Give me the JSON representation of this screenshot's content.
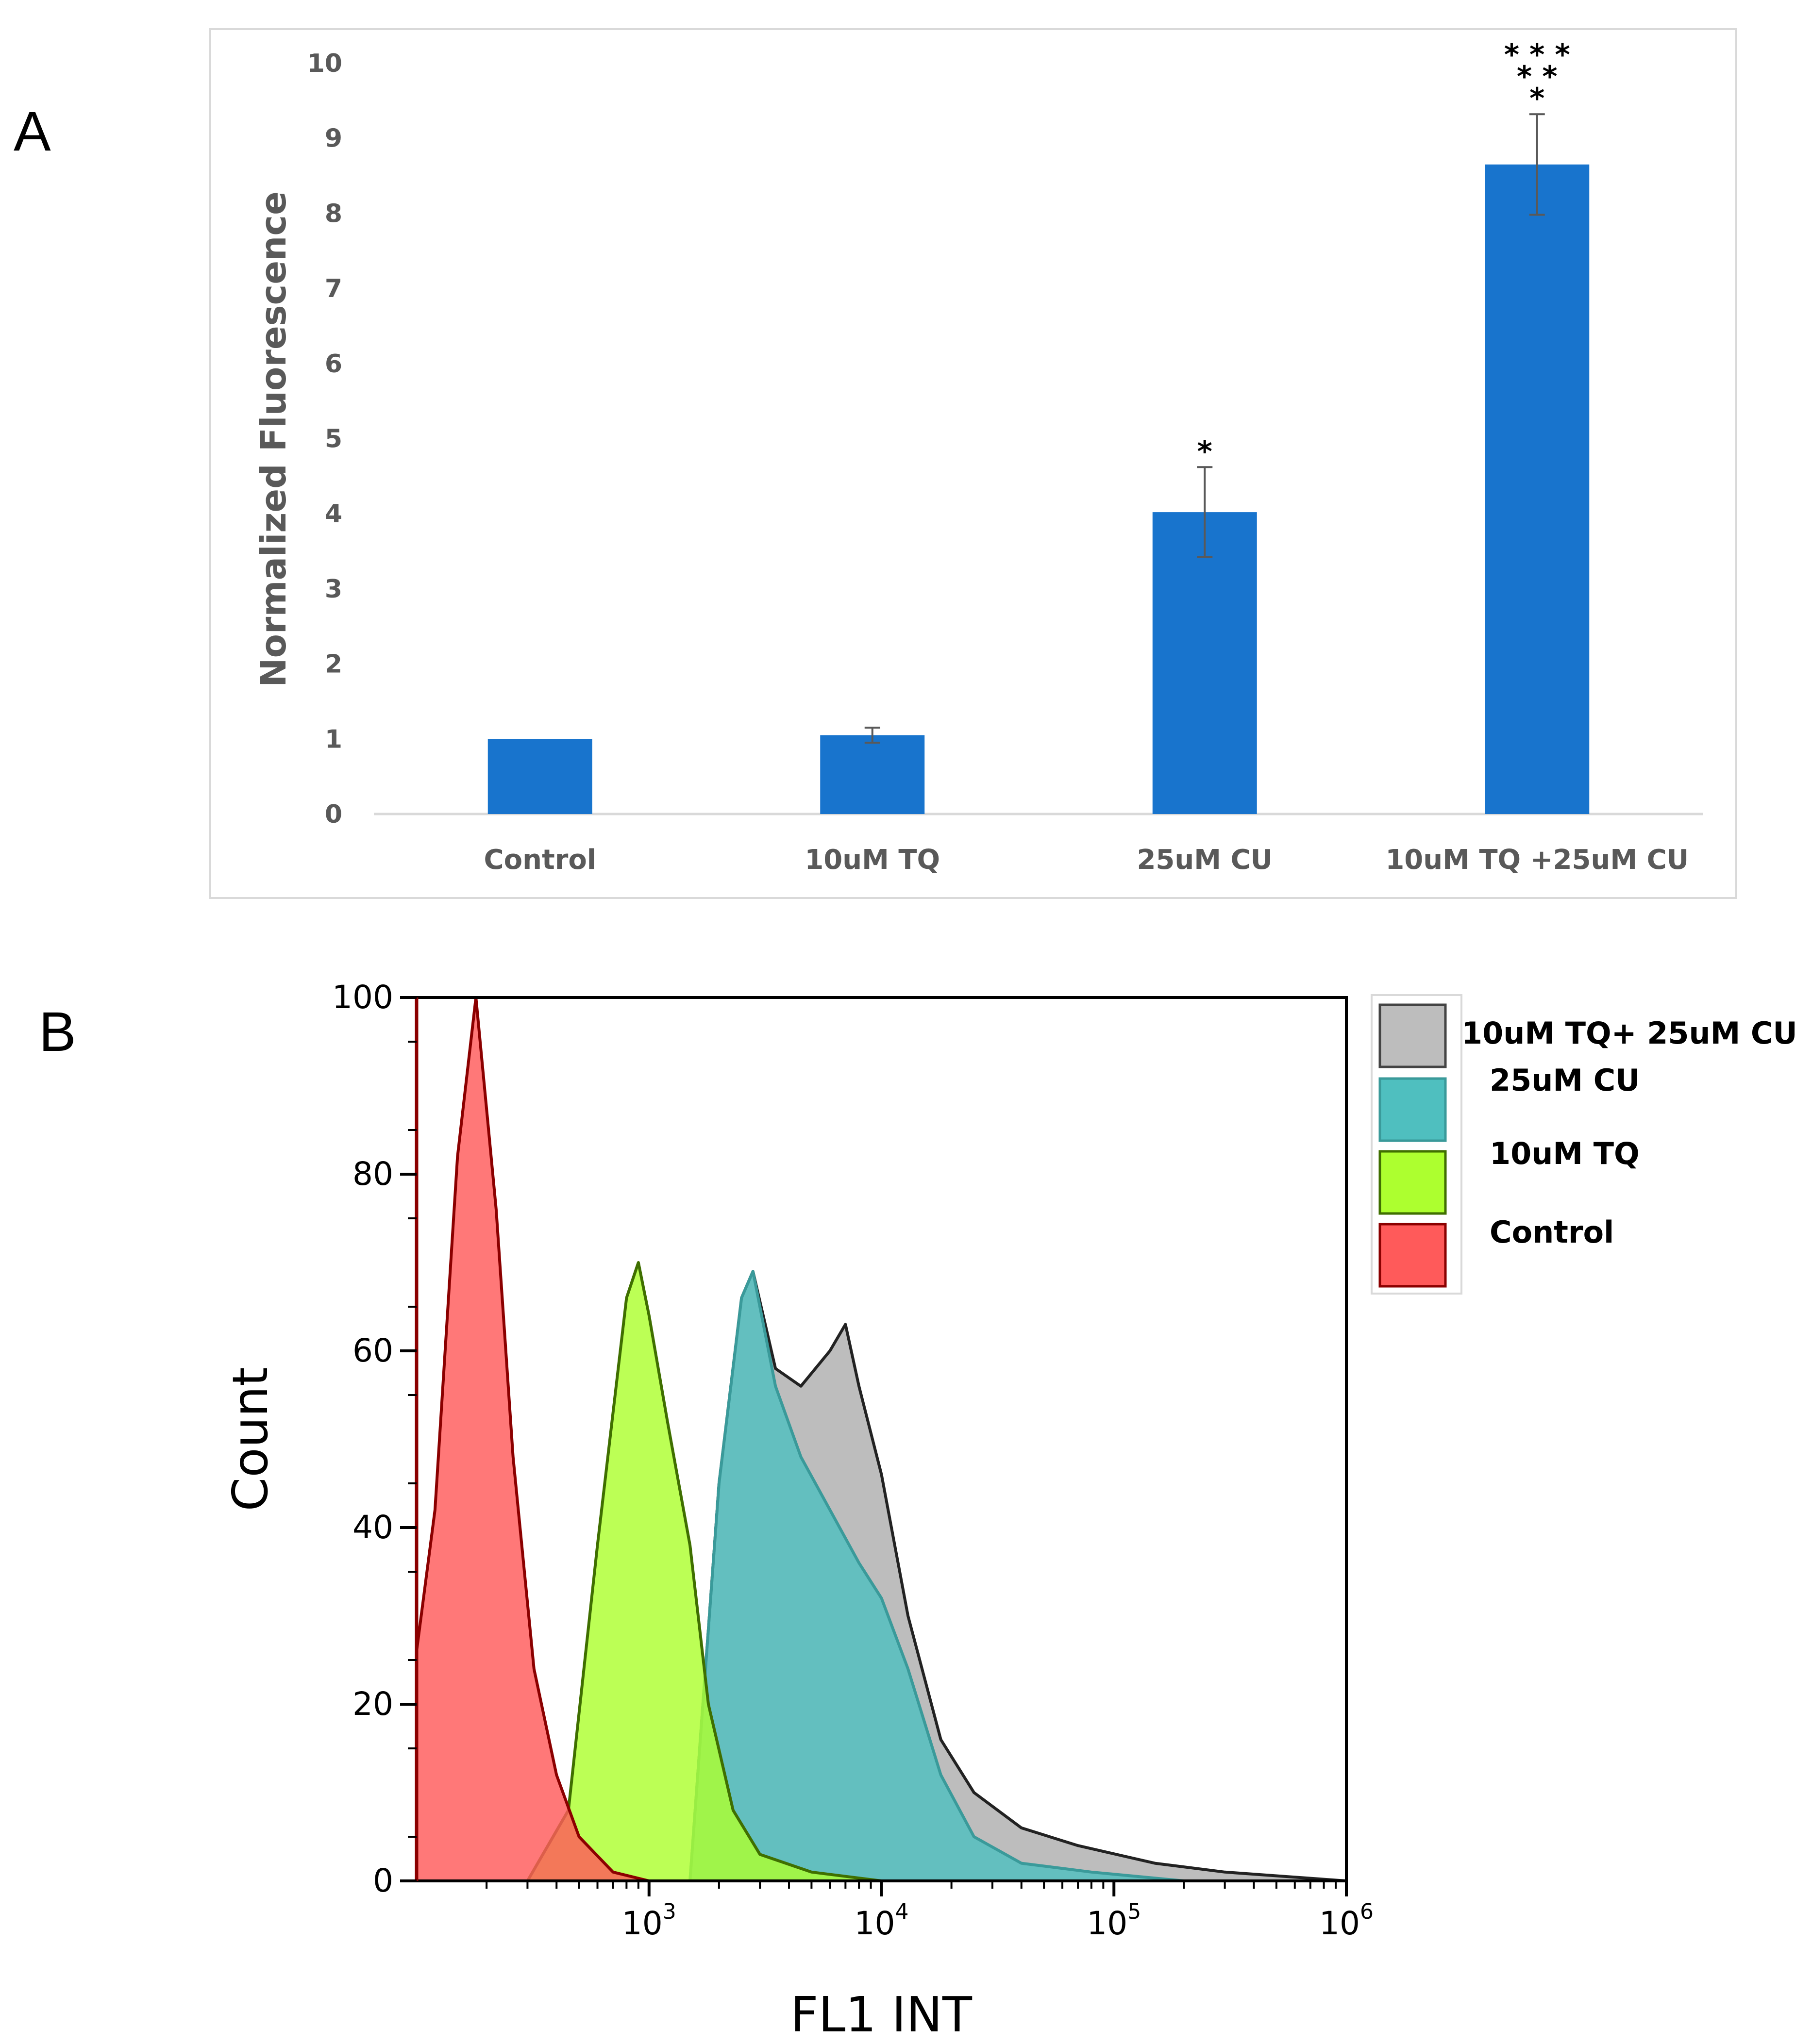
{
  "panels": {
    "a_label": "A",
    "b_label": "B"
  },
  "chart_data": [
    {
      "type": "bar",
      "title": "",
      "xlabel": "",
      "ylabel": "Normalized Fluorescence",
      "ylim": [
        0,
        10
      ],
      "yticks": [
        "0",
        "1",
        "2",
        "3",
        "4",
        "5",
        "6",
        "7",
        "8",
        "9",
        "10"
      ],
      "categories": [
        "Control",
        "10uM TQ",
        "25uM CU",
        "10uM TQ +25uM CU"
      ],
      "values": [
        1.0,
        1.05,
        4.02,
        8.65
      ],
      "errors": [
        0,
        0.1,
        0.6,
        0.67
      ],
      "annotations": [
        {
          "category": "25uM CU",
          "lines": [
            "*"
          ]
        },
        {
          "category": "10uM TQ +25uM CU",
          "lines": [
            "* * *",
            "* *",
            "*"
          ]
        }
      ],
      "bar_color": "#1874CD",
      "grid": false
    },
    {
      "type": "area",
      "title": "",
      "xlabel": "FL1 INT",
      "ylabel": "Count",
      "xscale": "log",
      "xlim": [
        100,
        1000000
      ],
      "ylim": [
        0,
        100
      ],
      "yticks": [
        "0",
        "20",
        "40",
        "60",
        "80",
        "100"
      ],
      "xticks": [
        {
          "base": "10",
          "exp": "3",
          "value": 1000
        },
        {
          "base": "10",
          "exp": "4",
          "value": 10000
        },
        {
          "base": "10",
          "exp": "5",
          "value": 100000
        },
        {
          "base": "10",
          "exp": "6",
          "value": 1000000
        }
      ],
      "series": [
        {
          "name": "10uM TQ+ 25uM CU",
          "color": "#BDBDBD",
          "peak_x": 2700,
          "points": [
            [
              1500,
              0
            ],
            [
              2000,
              45
            ],
            [
              2500,
              66
            ],
            [
              2800,
              69
            ],
            [
              3500,
              58
            ],
            [
              4500,
              56
            ],
            [
              6000,
              60
            ],
            [
              7000,
              63
            ],
            [
              8000,
              56
            ],
            [
              10000,
              46
            ],
            [
              13000,
              30
            ],
            [
              18000,
              16
            ],
            [
              25000,
              10
            ],
            [
              40000,
              6
            ],
            [
              70000,
              4
            ],
            [
              150000,
              2
            ],
            [
              300000,
              1
            ],
            [
              1000000,
              0
            ]
          ]
        },
        {
          "name": "25uM CU",
          "color": "#4FBFBF",
          "peak_x": 2600,
          "points": [
            [
              1500,
              0
            ],
            [
              2000,
              45
            ],
            [
              2500,
              66
            ],
            [
              2800,
              69
            ],
            [
              3500,
              56
            ],
            [
              4500,
              48
            ],
            [
              6000,
              42
            ],
            [
              8000,
              36
            ],
            [
              10000,
              32
            ],
            [
              13000,
              24
            ],
            [
              18000,
              12
            ],
            [
              25000,
              5
            ],
            [
              40000,
              2
            ],
            [
              80000,
              1
            ],
            [
              200000,
              0
            ]
          ]
        },
        {
          "name": "10uM TQ",
          "color": "#ADFF2F",
          "peak_x": 900,
          "points": [
            [
              300,
              0
            ],
            [
              450,
              8
            ],
            [
              600,
              38
            ],
            [
              800,
              66
            ],
            [
              900,
              70
            ],
            [
              1000,
              64
            ],
            [
              1200,
              52
            ],
            [
              1500,
              38
            ],
            [
              1800,
              20
            ],
            [
              2300,
              8
            ],
            [
              3000,
              3
            ],
            [
              5000,
              1
            ],
            [
              10000,
              0
            ]
          ]
        },
        {
          "name": "Control",
          "color": "#FF5A5A",
          "peak_x": 180,
          "points": [
            [
              100,
              26
            ],
            [
              120,
              42
            ],
            [
              150,
              82
            ],
            [
              180,
              100
            ],
            [
              220,
              76
            ],
            [
              260,
              48
            ],
            [
              320,
              24
            ],
            [
              400,
              12
            ],
            [
              500,
              5
            ],
            [
              700,
              1
            ],
            [
              1000,
              0
            ]
          ]
        }
      ],
      "legend": {
        "position": "right",
        "entries": [
          "10uM TQ+ 25uM CU",
          "25uM CU",
          "10uM TQ",
          "Control"
        ]
      }
    }
  ]
}
